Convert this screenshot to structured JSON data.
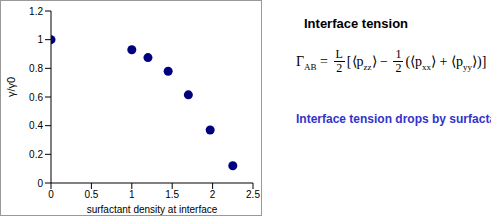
{
  "chart_data": {
    "type": "scatter",
    "x_label": "surfactant density at interface",
    "y_label": "γ/γ0",
    "x": [
      0,
      1.0,
      1.2,
      1.45,
      1.7,
      1.97,
      2.25
    ],
    "values": [
      1.0,
      0.93,
      0.875,
      0.78,
      0.615,
      0.37,
      0.12
    ],
    "color": "#00007f",
    "marker": "circle",
    "xlim": [
      0,
      2.5
    ],
    "xticks": [
      0,
      0.5,
      1,
      1.5,
      2,
      2.5
    ],
    "ylim": [
      0,
      1.2
    ],
    "yticks": [
      0,
      0.2,
      0.4,
      0.6,
      0.8,
      1,
      1.2
    ],
    "grid": false
  },
  "annotations": {
    "heading": "Interface tension",
    "formula": [
      {
        "text": "Γ"
      },
      {
        "sub": "AB"
      },
      {
        "text": " = "
      },
      {
        "frac": [
          "L",
          "2"
        ]
      },
      {
        "text": "["
      },
      {
        "text": "⟨p"
      },
      {
        "sub": "zz"
      },
      {
        "text": "⟩ − "
      },
      {
        "frac": [
          "1",
          "2"
        ]
      },
      {
        "text": "(⟨p"
      },
      {
        "sub": "xx"
      },
      {
        "text": "⟩ + ⟨p"
      },
      {
        "sub": "yy"
      },
      {
        "text": "⟩)]"
      }
    ],
    "caption": "Interface tension drops by surfactant",
    "caption_color": "#3333cc"
  }
}
